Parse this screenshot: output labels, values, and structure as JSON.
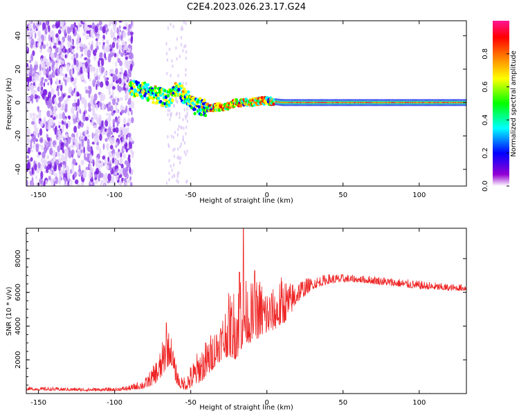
{
  "chart_data": [
    {
      "type": "heatmap",
      "title": "C2E4.2023.026.23.17.G24",
      "xlabel": "Height of straight line (km)",
      "ylabel": "Frequency (Hz)",
      "xlim": [
        -158,
        131
      ],
      "ylim": [
        -50,
        49
      ],
      "x_ticks": [
        -150,
        -100,
        -50,
        0,
        50,
        100
      ],
      "y_ticks": [
        -40,
        -20,
        0,
        20,
        40
      ],
      "colorbar": {
        "label": "Normalized spectral amplitude",
        "range": [
          0,
          1
        ],
        "ticks": [
          0.0,
          0.2,
          0.4,
          0.6,
          0.8
        ],
        "colormap": [
          "#ffffff",
          "#9400d3",
          "#0000ff",
          "#00ffff",
          "#00ff00",
          "#ffff00",
          "#ff7f00",
          "#ff0000",
          "#ff1493"
        ]
      },
      "line_center_hz": [
        [
          -88,
          8
        ],
        [
          -80,
          7
        ],
        [
          -72,
          4
        ],
        [
          -65,
          2
        ],
        [
          -60,
          8
        ],
        [
          -55,
          5
        ],
        [
          -48,
          -2
        ],
        [
          -42,
          -3
        ],
        [
          -35,
          -3
        ],
        [
          -25,
          -2
        ],
        [
          -20,
          0
        ],
        [
          -10,
          0
        ],
        [
          -5,
          1
        ],
        [
          0,
          1
        ],
        [
          10,
          0
        ],
        [
          40,
          0
        ],
        [
          80,
          0
        ],
        [
          131,
          0
        ]
      ],
      "noise_region_km": [
        -158,
        -88
      ],
      "grid": false
    },
    {
      "type": "line",
      "title": "",
      "xlabel": "Height of straight line (km)",
      "ylabel": "SNR (10 * v/v)",
      "xlim": [
        -158,
        131
      ],
      "ylim": [
        0,
        9800
      ],
      "x_ticks": [
        -150,
        -100,
        -50,
        0,
        50,
        100
      ],
      "y_ticks": [
        2000,
        4000,
        6000,
        8000
      ],
      "color": "#ee2222",
      "envelope": {
        "x": [
          -158,
          -120,
          -100,
          -90,
          -80,
          -75,
          -70,
          -66,
          -63,
          -60,
          -57,
          -53,
          -50,
          -45,
          -40,
          -35,
          -30,
          -25,
          -20,
          -17,
          -14,
          -10,
          -5,
          0,
          5,
          10,
          15,
          20,
          30,
          40,
          50,
          60,
          70,
          80,
          90,
          100,
          110,
          120,
          131
        ],
        "base": [
          200,
          150,
          150,
          200,
          300,
          500,
          800,
          1500,
          1800,
          700,
          300,
          200,
          300,
          600,
          900,
          1500,
          2000,
          2200,
          2000,
          2500,
          3000,
          3000,
          3300,
          3500,
          3800,
          4000,
          4600,
          5400,
          6200,
          6500,
          6600,
          6600,
          6500,
          6400,
          6300,
          6200,
          6150,
          6100,
          6100
        ],
        "top": [
          400,
          350,
          350,
          500,
          900,
          1600,
          2600,
          4000,
          3500,
          1900,
          900,
          1200,
          1700,
          2600,
          3200,
          3800,
          4600,
          6000,
          6400,
          9800,
          6800,
          6600,
          7000,
          6400,
          6200,
          7100,
          6600,
          6800,
          6900,
          7100,
          7100,
          7000,
          7000,
          6900,
          6800,
          6700,
          6600,
          6500,
          6500
        ]
      },
      "spikes": [
        [
          -66,
          4200
        ],
        [
          -18,
          7200
        ],
        [
          -15.5,
          9800
        ],
        [
          -8,
          7300
        ]
      ],
      "samples": 1400
    }
  ]
}
